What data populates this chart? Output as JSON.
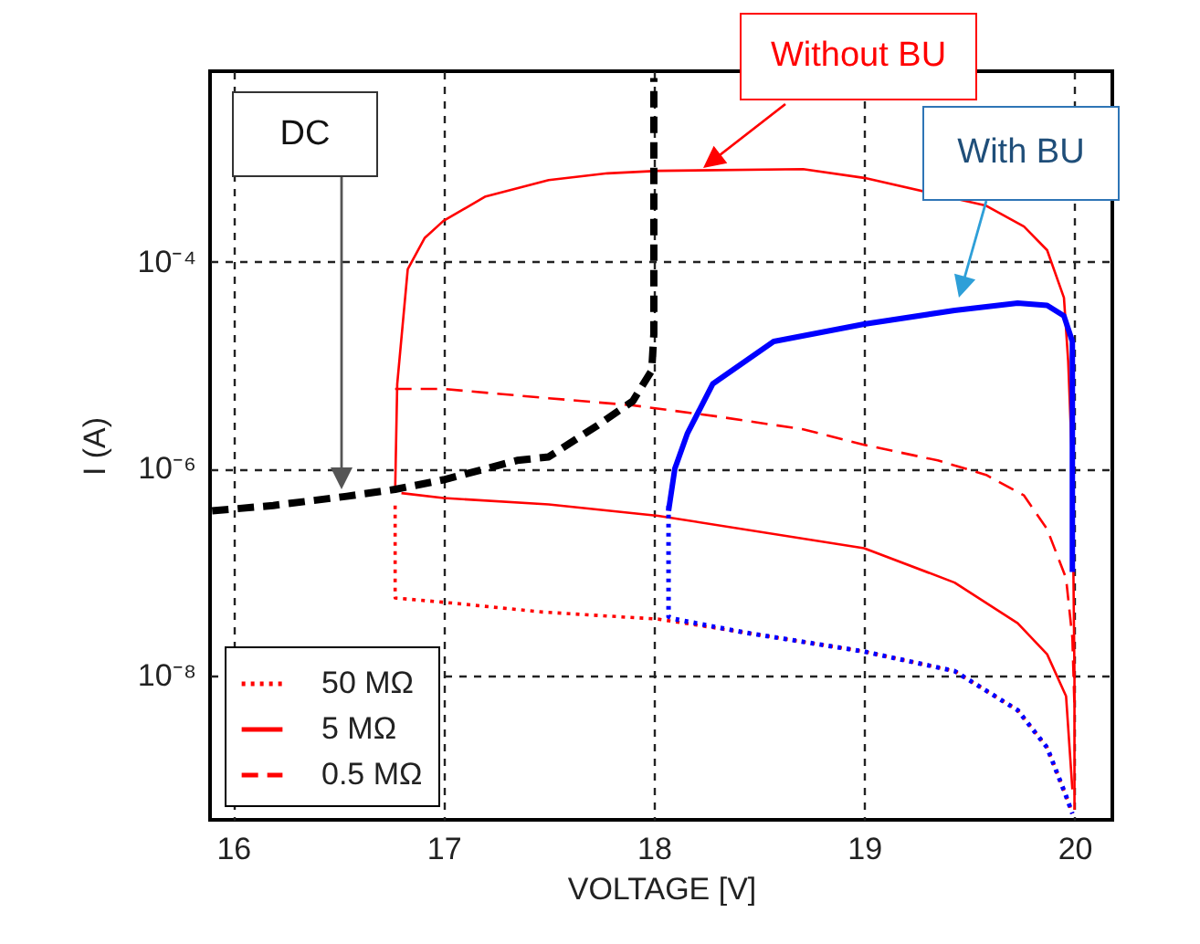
{
  "chart_data": {
    "type": "line",
    "xlabel": "VOLTAGE [V]",
    "ylabel": "I (A)",
    "xlim": [
      15.89,
      20.18
    ],
    "ylim": [
      4e-10,
      0.007
    ],
    "log": "y",
    "grid": true,
    "legend": "bottom left",
    "xticks": [
      16,
      17,
      18,
      19,
      20
    ],
    "yticks": [
      {
        "value": 1e-08,
        "label": "10⁻⁸"
      },
      {
        "value": 1e-06,
        "label": "10⁻⁶"
      },
      {
        "value": 0.0001,
        "label": "10⁻⁴"
      }
    ],
    "annotations": [
      "Without BU",
      "With BU",
      "DC"
    ],
    "series": [
      {
        "name": "50 MΩ",
        "color": "#ff0000",
        "line_style": "dotted",
        "x": [
          16.77,
          16.77,
          17.0,
          17.47,
          18.02,
          18.43,
          19.0,
          19.43,
          19.73,
          19.87,
          19.96,
          19.99
        ],
        "values": [
          4.4e-07,
          5.6e-08,
          5.1e-08,
          4.1e-08,
          3.5e-08,
          2.6e-08,
          1.7e-08,
          1.1e-08,
          4.6e-09,
          2e-09,
          6.8e-10,
          4.6e-10
        ]
      },
      {
        "name": "5 MΩ",
        "color": "#ff0000",
        "line_style": "solid",
        "x": [
          16.77,
          16.78,
          16.83,
          16.91,
          17.0,
          17.2,
          17.5,
          17.78,
          18.02,
          18.71,
          19.0,
          19.58,
          19.76,
          19.87,
          19.95,
          19.97,
          19.99,
          20.0,
          20.0
        ],
        "values": [
          5.9e-07,
          6.6e-06,
          8.5e-05,
          0.00017,
          0.00025,
          0.00043,
          0.00062,
          0.00072,
          0.00076,
          0.00079,
          0.00065,
          0.00035,
          0.00022,
          0.00013,
          4.5e-05,
          1.1e-05,
          1e-06,
          1e-08,
          5e-10
        ]
      },
      {
        "color": "#ff0000",
        "line_style": "solid",
        "x": [
          16.8,
          17.0,
          17.5,
          18.02,
          19.0,
          19.43,
          19.73,
          19.87,
          19.96,
          19.99
        ],
        "values": [
          5.8e-07,
          5.2e-07,
          4.5e-07,
          3.5e-07,
          1.7e-07,
          7.9e-08,
          3.2e-08,
          1.6e-08,
          6.3e-09,
          7.9e-10
        ]
      },
      {
        "name": "0.5 MΩ",
        "color": "#ff0000",
        "line_style": "dashed",
        "x": [
          16.77,
          17.0,
          17.5,
          17.9,
          18.3,
          18.71,
          19.0,
          19.35,
          19.58,
          19.76,
          19.87,
          19.96,
          19.99,
          20.0
        ],
        "values": [
          5.9e-06,
          5.9e-06,
          4.8e-06,
          4.1e-06,
          3.2e-06,
          2.4e-06,
          1.7e-06,
          1.2e-06,
          8.7e-07,
          5.5e-07,
          2.6e-07,
          8.7e-08,
          2.3e-08,
          5e-09
        ]
      },
      {
        "color": "#0000ff",
        "line_style": "dotted",
        "x": [
          18.07,
          18.07,
          18.1,
          18.43,
          19.0,
          19.43,
          19.73,
          19.87,
          19.96,
          19.99
        ],
        "values": [
          4.4e-07,
          3.7e-08,
          3.5e-08,
          2.6e-08,
          1.7e-08,
          1.1e-08,
          4.6e-09,
          2e-09,
          6.8e-10,
          4.6e-10
        ]
      },
      {
        "color": "#0000ff",
        "line_style": "solid",
        "x": [
          18.07,
          18.1,
          18.16,
          18.28,
          18.57,
          19.0,
          19.43,
          19.73,
          19.87,
          19.95,
          19.99,
          19.99,
          19.99
        ],
        "values": [
          3.9e-07,
          1e-06,
          2.2e-06,
          6.6e-06,
          1.7e-05,
          2.5e-05,
          3.4e-05,
          4e-05,
          3.8e-05,
          3e-05,
          1.7e-05,
          1.5e-06,
          1e-07
        ]
      },
      {
        "color": "#000000",
        "line_style": "dashed",
        "x": [
          15.9,
          16.19,
          16.54,
          16.77,
          17.0,
          17.35,
          17.5,
          17.73,
          17.9,
          17.99,
          18.0,
          18.0
        ],
        "values": [
          3.9e-07,
          4.4e-07,
          5.4e-07,
          6.3e-07,
          7.8e-07,
          1.2e-06,
          1.3e-06,
          2.6e-06,
          4.5e-06,
          8.9e-06,
          2e-05,
          0.006
        ]
      }
    ]
  }
}
